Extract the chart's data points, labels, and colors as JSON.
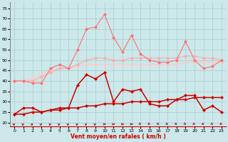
{
  "x": [
    0,
    1,
    2,
    3,
    4,
    5,
    6,
    7,
    8,
    9,
    10,
    11,
    12,
    13,
    14,
    15,
    16,
    17,
    18,
    19,
    20,
    21,
    22,
    23
  ],
  "line1": [
    24,
    27,
    27,
    25,
    26,
    27,
    27,
    38,
    43,
    41,
    44,
    30,
    36,
    35,
    36,
    29,
    28,
    28,
    31,
    33,
    33,
    26,
    28,
    25
  ],
  "line2": [
    24,
    24,
    25,
    25,
    26,
    26,
    27,
    27,
    28,
    28,
    29,
    29,
    29,
    30,
    30,
    30,
    30,
    31,
    31,
    31,
    32,
    32,
    32,
    32
  ],
  "line3": [
    40,
    40,
    39,
    39,
    46,
    48,
    46,
    55,
    65,
    66,
    72,
    61,
    54,
    62,
    53,
    50,
    49,
    49,
    50,
    59,
    50,
    46,
    47,
    50
  ],
  "line4": [
    40,
    40,
    40,
    42,
    44,
    46,
    46,
    48,
    50,
    51,
    51,
    50,
    50,
    51,
    51,
    51,
    51,
    51,
    51,
    52,
    52,
    51,
    51,
    50
  ],
  "line5": [
    40,
    40,
    41,
    43,
    45,
    46,
    46,
    47,
    48,
    48,
    48,
    48,
    48,
    48,
    48,
    48,
    48,
    48,
    48,
    49,
    49,
    49,
    49,
    49
  ],
  "background_color": "#cce8ea",
  "grid_color": "#aacccc",
  "line1_color": "#cc0000",
  "line2_color": "#cc0000",
  "line3_color": "#ff7070",
  "line4_color": "#ffaaaa",
  "line5_color": "#ffc8c8",
  "xlabel": "Vent moyen/en rafales ( km/h )",
  "yticks": [
    20,
    25,
    30,
    35,
    40,
    45,
    50,
    55,
    60,
    65,
    70,
    75
  ],
  "ylim": [
    18,
    78
  ],
  "xlim": [
    -0.5,
    23.5
  ],
  "arrow_angles": [
    225,
    225,
    225,
    225,
    225,
    225,
    225,
    225,
    225,
    225,
    270,
    270,
    270,
    270,
    315,
    315,
    315,
    315,
    315,
    315,
    315,
    315,
    315,
    315
  ]
}
